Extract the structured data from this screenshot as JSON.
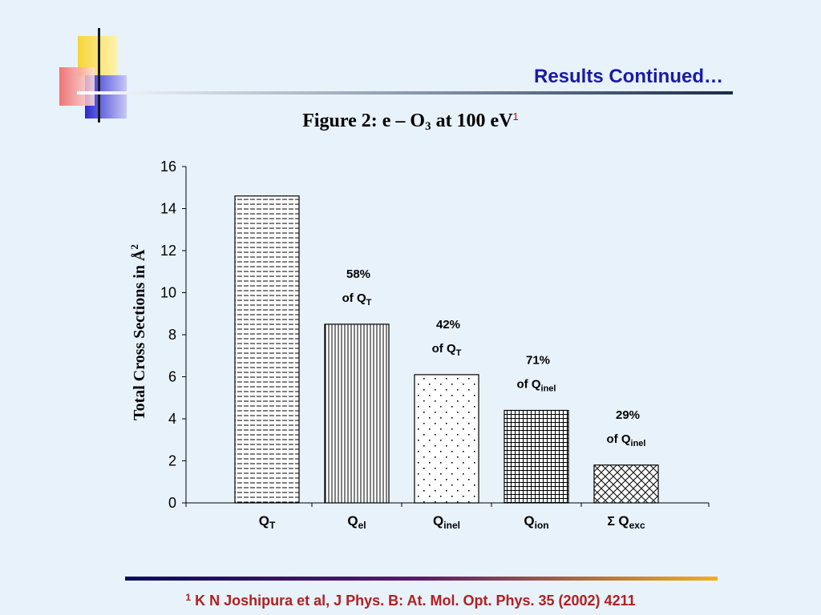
{
  "slide": {
    "title": "Results Continued…",
    "footnote_marker": "1",
    "footnote_text": "K N Joshipura et al, J Phys. B: At. Mol. Opt. Phys. 35 (2002) 4211"
  },
  "figure": {
    "title_prefix": "Figure 2: e – O",
    "title_sub": "3",
    "title_suffix": " at 100 eV",
    "title_sup": "1"
  },
  "colors": {
    "background": "#e8f2fb",
    "title": "#1a1aa6",
    "footnote": "#b02020",
    "deco_yellow": "#f5d53a",
    "deco_red": "#f06060",
    "deco_blue": "#2a2ad0"
  },
  "chart_data": {
    "type": "bar",
    "ylabel": "Total Cross Sections in Å",
    "ylabel_sup": "2",
    "ylim": [
      0,
      16
    ],
    "yticks": [
      "0",
      "2",
      "4",
      "6",
      "8",
      "10",
      "12",
      "14",
      "16"
    ],
    "grid": false,
    "categories": [
      {
        "main": "Q",
        "sub": "T",
        "prefix": ""
      },
      {
        "main": "Q",
        "sub": "el",
        "prefix": ""
      },
      {
        "main": "Q",
        "sub": "inel",
        "prefix": ""
      },
      {
        "main": "Q",
        "sub": "ion",
        "prefix": ""
      },
      {
        "main": "Q",
        "sub": "exc",
        "prefix": "Σ "
      }
    ],
    "values": [
      14.6,
      8.5,
      6.1,
      4.4,
      1.8
    ],
    "patterns": [
      "horizontal-dashes",
      "vertical-lines",
      "dots",
      "grid",
      "crosshatch"
    ],
    "annotations": [
      null,
      {
        "pct": "58%",
        "of": "of Q",
        "sub": "T"
      },
      {
        "pct": "42%",
        "of": "of Q",
        "sub": "T"
      },
      {
        "pct": "71%",
        "of": "of Q",
        "sub": "inel"
      },
      {
        "pct": "29%",
        "of": "of Q",
        "sub": "inel"
      }
    ]
  }
}
